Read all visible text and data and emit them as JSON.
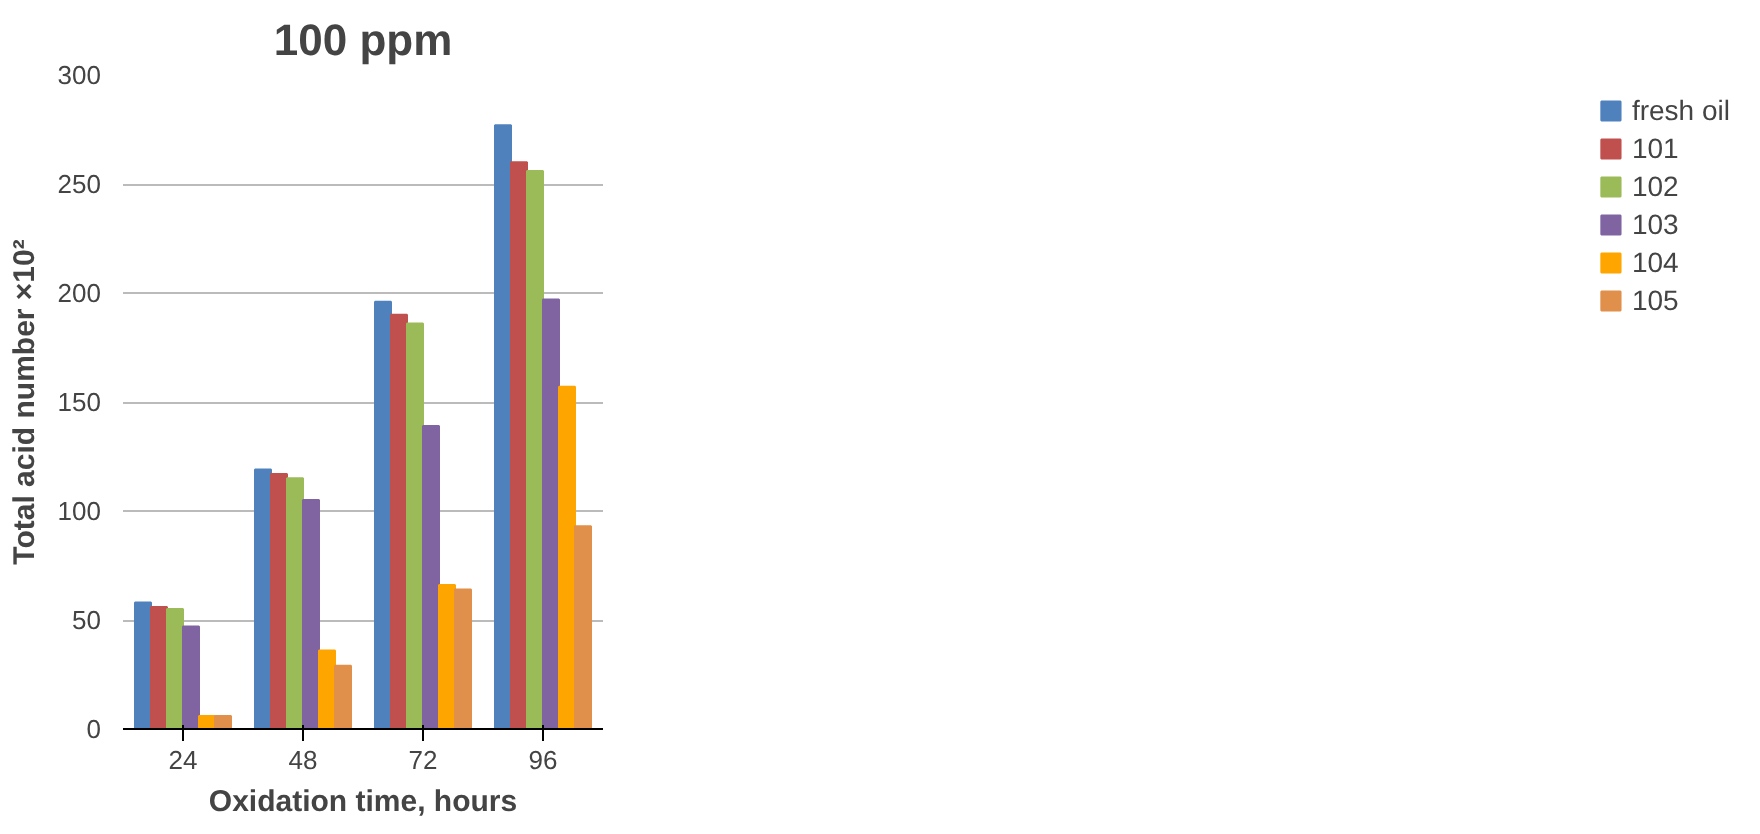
{
  "chart_data": {
    "type": "bar",
    "title": "100 ppm",
    "xlabel": "Oxidation time, hours",
    "ylabel": "Total acid number ×10²",
    "categories": [
      "24",
      "48",
      "72",
      "96"
    ],
    "series": [
      {
        "name": "fresh oil",
        "color": "#4f81bd",
        "values": [
          58,
          119,
          196,
          277
        ]
      },
      {
        "name": "101",
        "color": "#c0504d",
        "values": [
          56,
          117,
          190,
          260
        ]
      },
      {
        "name": "102",
        "color": "#9bbb59",
        "values": [
          55,
          115,
          186,
          256
        ]
      },
      {
        "name": "103",
        "color": "#8064a2",
        "values": [
          47,
          105,
          139,
          197
        ]
      },
      {
        "name": "104",
        "color": "#ffa500",
        "values": [
          6,
          36,
          66,
          157
        ]
      },
      {
        "name": "105",
        "color": "#e0904a",
        "values": [
          6,
          29,
          64,
          93
        ]
      }
    ],
    "ylim": [
      0,
      300
    ],
    "yticks": [
      0,
      50,
      100,
      150,
      200,
      250,
      300
    ],
    "grid": "y",
    "legend": "right"
  }
}
